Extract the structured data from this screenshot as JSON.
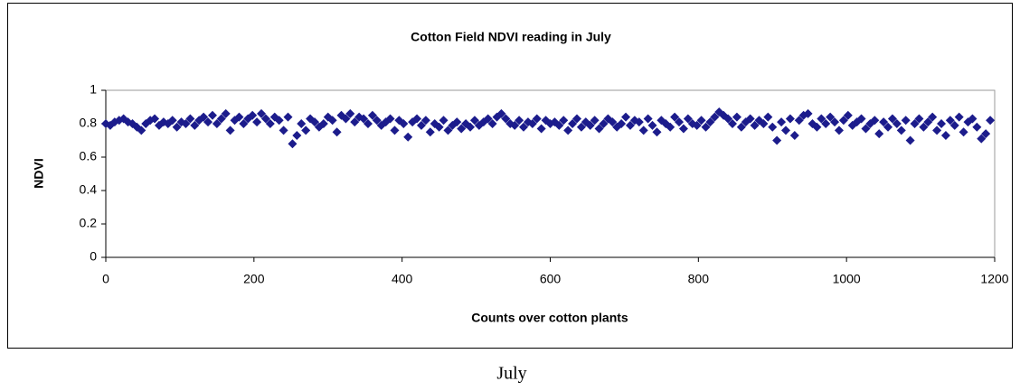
{
  "chart_data": {
    "type": "scatter",
    "title": "Cotton Field NDVI reading in July",
    "x_label": "Counts over cotton plants",
    "y_label": "NDVI",
    "color": "#1c1c8c",
    "grid": false,
    "xlim": [
      0,
      1200
    ],
    "xticks": [
      0,
      200,
      400,
      600,
      800,
      1000,
      1200
    ],
    "ylim": [
      0,
      1
    ],
    "yticks": [
      0,
      0.2,
      0.4,
      0.6,
      0.8,
      1
    ],
    "x": [
      0,
      6,
      12,
      18,
      24,
      30,
      36,
      42,
      48,
      54,
      60,
      66,
      72,
      78,
      84,
      90,
      96,
      102,
      108,
      114,
      120,
      126,
      132,
      138,
      144,
      150,
      156,
      162,
      168,
      174,
      180,
      186,
      192,
      198,
      204,
      210,
      216,
      222,
      228,
      234,
      240,
      246,
      252,
      258,
      264,
      270,
      276,
      282,
      288,
      294,
      300,
      306,
      312,
      318,
      324,
      330,
      336,
      342,
      348,
      354,
      360,
      366,
      372,
      378,
      384,
      390,
      396,
      402,
      408,
      414,
      420,
      426,
      432,
      438,
      444,
      450,
      456,
      462,
      468,
      474,
      480,
      486,
      492,
      498,
      504,
      510,
      516,
      522,
      528,
      534,
      540,
      546,
      552,
      558,
      564,
      570,
      576,
      582,
      588,
      594,
      600,
      606,
      612,
      618,
      624,
      630,
      636,
      642,
      648,
      654,
      660,
      666,
      672,
      678,
      684,
      690,
      696,
      702,
      708,
      714,
      720,
      726,
      732,
      738,
      744,
      750,
      756,
      762,
      768,
      774,
      780,
      786,
      792,
      798,
      804,
      810,
      816,
      822,
      828,
      834,
      840,
      846,
      852,
      858,
      864,
      870,
      876,
      882,
      888,
      894,
      900,
      906,
      912,
      918,
      924,
      930,
      936,
      942,
      948,
      954,
      960,
      966,
      972,
      978,
      984,
      990,
      996,
      1002,
      1008,
      1014,
      1020,
      1026,
      1032,
      1038,
      1044,
      1050,
      1056,
      1062,
      1068,
      1074,
      1080,
      1086,
      1092,
      1098,
      1104,
      1110,
      1116,
      1122,
      1128,
      1134,
      1140,
      1146,
      1152,
      1158,
      1164,
      1170,
      1176,
      1182,
      1188,
      1194
    ],
    "values": [
      0.8,
      0.79,
      0.81,
      0.82,
      0.83,
      0.81,
      0.8,
      0.78,
      0.76,
      0.8,
      0.82,
      0.83,
      0.79,
      0.81,
      0.8,
      0.82,
      0.78,
      0.81,
      0.8,
      0.83,
      0.79,
      0.82,
      0.84,
      0.81,
      0.85,
      0.8,
      0.83,
      0.86,
      0.76,
      0.82,
      0.84,
      0.8,
      0.83,
      0.85,
      0.81,
      0.86,
      0.83,
      0.8,
      0.84,
      0.82,
      0.76,
      0.84,
      0.68,
      0.73,
      0.8,
      0.76,
      0.83,
      0.81,
      0.78,
      0.8,
      0.84,
      0.82,
      0.75,
      0.85,
      0.83,
      0.86,
      0.81,
      0.84,
      0.83,
      0.8,
      0.85,
      0.82,
      0.79,
      0.81,
      0.83,
      0.76,
      0.82,
      0.8,
      0.72,
      0.81,
      0.83,
      0.79,
      0.82,
      0.75,
      0.8,
      0.78,
      0.82,
      0.76,
      0.79,
      0.81,
      0.77,
      0.8,
      0.78,
      0.82,
      0.79,
      0.81,
      0.83,
      0.8,
      0.84,
      0.86,
      0.83,
      0.8,
      0.79,
      0.82,
      0.78,
      0.81,
      0.8,
      0.83,
      0.77,
      0.82,
      0.8,
      0.81,
      0.79,
      0.82,
      0.76,
      0.8,
      0.83,
      0.78,
      0.81,
      0.79,
      0.82,
      0.77,
      0.8,
      0.83,
      0.81,
      0.78,
      0.8,
      0.84,
      0.79,
      0.82,
      0.81,
      0.76,
      0.83,
      0.79,
      0.75,
      0.82,
      0.8,
      0.78,
      0.84,
      0.81,
      0.77,
      0.83,
      0.8,
      0.79,
      0.82,
      0.78,
      0.81,
      0.84,
      0.87,
      0.85,
      0.83,
      0.8,
      0.84,
      0.78,
      0.81,
      0.83,
      0.79,
      0.82,
      0.8,
      0.84,
      0.78,
      0.7,
      0.81,
      0.76,
      0.83,
      0.73,
      0.82,
      0.85,
      0.86,
      0.8,
      0.78,
      0.83,
      0.8,
      0.84,
      0.81,
      0.76,
      0.82,
      0.85,
      0.79,
      0.81,
      0.83,
      0.77,
      0.8,
      0.82,
      0.74,
      0.81,
      0.78,
      0.83,
      0.8,
      0.76,
      0.82,
      0.7,
      0.8,
      0.83,
      0.78,
      0.81,
      0.84,
      0.76,
      0.8,
      0.73,
      0.82,
      0.79,
      0.84,
      0.75,
      0.81,
      0.83,
      0.78,
      0.71,
      0.74,
      0.82
    ]
  },
  "caption": "July"
}
